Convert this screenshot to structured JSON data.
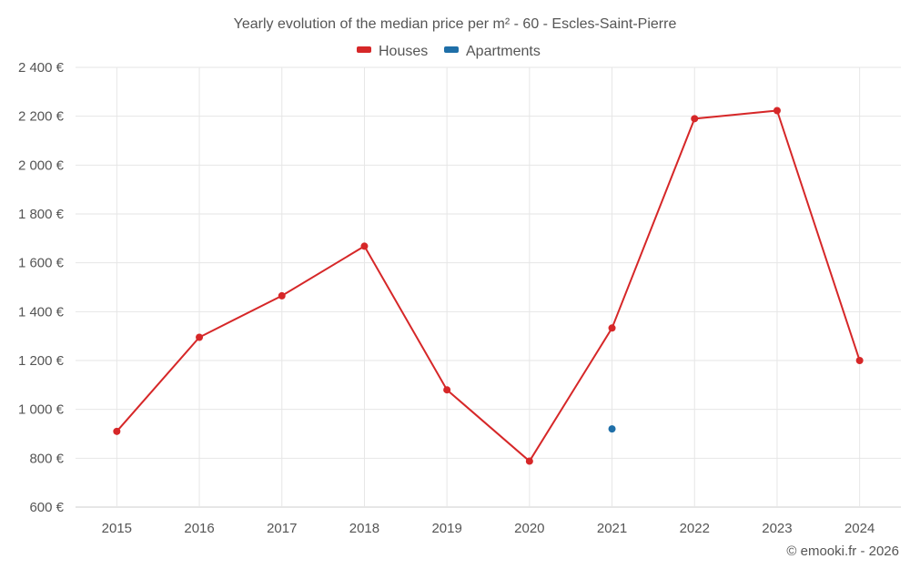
{
  "chart_data": {
    "type": "line",
    "title": "Yearly evolution of the median price per m² - 60 - Escles-Saint-Pierre",
    "categories": [
      "2015",
      "2016",
      "2017",
      "2018",
      "2019",
      "2020",
      "2021",
      "2022",
      "2023",
      "2024"
    ],
    "ylim": [
      600,
      2400
    ],
    "yticks": [
      600,
      800,
      1000,
      1200,
      1400,
      1600,
      1800,
      2000,
      2200,
      2400
    ],
    "ytick_labels": [
      "600 €",
      "800 €",
      "1 000 €",
      "1 200 €",
      "1 400 €",
      "1 600 €",
      "1 800 €",
      "2 000 €",
      "2 200 €",
      "2 400 €"
    ],
    "legend_position": "top-center",
    "series": [
      {
        "name": "Houses",
        "color": "#d62728",
        "values": [
          910,
          1295,
          1465,
          1668,
          1080,
          788,
          1333,
          2190,
          2223,
          1200
        ]
      },
      {
        "name": "Apartments",
        "color": "#1f6fa8",
        "values": [
          null,
          null,
          null,
          null,
          null,
          null,
          920,
          null,
          null,
          null
        ]
      }
    ],
    "credit": "© emooki.fr - 2026"
  }
}
